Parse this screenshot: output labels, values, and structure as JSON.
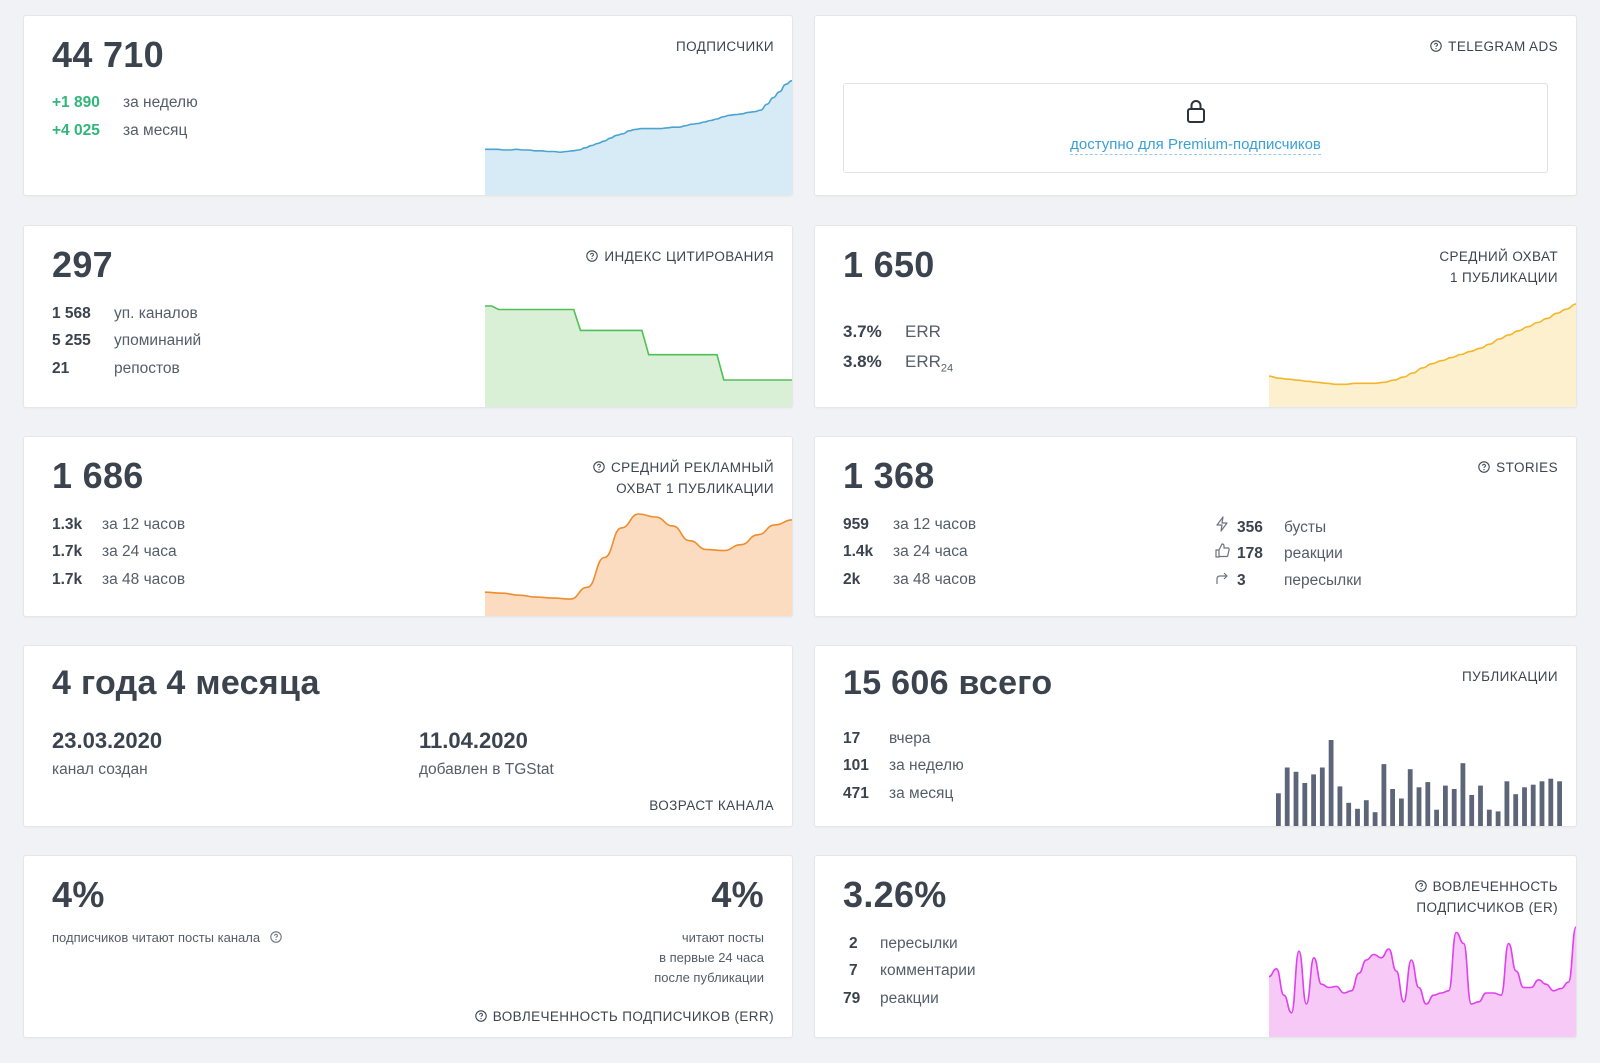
{
  "subscribers": {
    "value": "44 710",
    "label": "ПОДПИСЧИКИ",
    "week_value": "+1 890",
    "week_label": "за неделю",
    "month_value": "+4 025",
    "month_label": "за месяц",
    "chart": [
      62,
      62,
      62,
      61,
      61,
      62,
      61,
      61,
      60,
      60,
      59,
      59,
      58,
      59,
      60,
      61,
      64,
      67,
      70,
      73,
      77,
      81,
      83,
      87,
      89,
      90,
      90,
      90,
      90,
      91,
      92,
      92,
      94,
      96,
      97,
      99,
      101,
      103,
      106,
      108,
      109,
      110,
      112,
      113,
      115,
      123,
      132,
      140,
      150,
      155
    ]
  },
  "telegram_ads": {
    "label": "TELEGRAM ADS",
    "premium_text": "доступно для Premium-подписчиков"
  },
  "citation": {
    "value": "297",
    "label": "ИНДЕКС ЦИТИРОВАНИЯ",
    "rows": [
      {
        "value": "1 568",
        "label": "уп. каналов"
      },
      {
        "value": "5 255",
        "label": "упоминаний"
      },
      {
        "value": "21",
        "label": "репостов"
      }
    ],
    "chart": [
      100,
      100,
      96,
      96,
      96,
      96,
      96,
      96,
      96,
      96,
      96,
      96,
      96,
      96,
      72,
      72,
      72,
      72,
      72,
      72,
      72,
      72,
      72,
      72,
      44,
      44,
      44,
      44,
      44,
      44,
      44,
      44,
      44,
      44,
      44,
      15,
      15,
      15,
      15,
      15,
      15,
      15,
      15,
      15,
      15,
      15
    ]
  },
  "avg_reach": {
    "value": "1 650",
    "label_line1": "СРЕДНИЙ ОХВАТ",
    "label_line2": "1 ПУБЛИКАЦИИ",
    "rows": [
      {
        "value": "3.7%",
        "label": "ERR",
        "sub": ""
      },
      {
        "value": "3.8%",
        "label": "ERR",
        "sub": "24"
      }
    ],
    "chart": [
      30,
      28,
      27,
      26,
      25,
      24,
      23,
      22,
      22,
      23,
      23,
      23,
      24,
      26,
      29,
      33,
      38,
      42,
      45,
      48,
      51,
      54,
      57,
      61,
      66,
      70,
      74,
      78,
      82,
      86,
      91,
      95,
      100
    ]
  },
  "ad_reach": {
    "value": "1 686",
    "label_line1": "СРЕДНИЙ РЕКЛАМНЫЙ",
    "label_line2": "ОХВАТ 1 ПУБЛИКАЦИИ",
    "rows": [
      {
        "value": "1.3k",
        "label": "за 12 часов"
      },
      {
        "value": "1.7k",
        "label": "за 24 часа"
      },
      {
        "value": "1.7k",
        "label": "за 48 часов"
      }
    ],
    "chart": [
      20,
      19,
      17,
      15,
      14,
      13,
      25,
      55,
      85,
      99,
      96,
      87,
      72,
      63,
      62,
      68,
      78,
      88,
      93
    ]
  },
  "stories": {
    "value": "1 368",
    "label": "STORIES",
    "rows_left": [
      {
        "value": "959",
        "label": "за 12 часов"
      },
      {
        "value": "1.4k",
        "label": "за 24 часа"
      },
      {
        "value": "2k",
        "label": "за 48 часов"
      }
    ],
    "rows_right": [
      {
        "icon": "lightning-icon",
        "value": "356",
        "label": "бусты"
      },
      {
        "icon": "thumbs-up-icon",
        "value": "178",
        "label": "реакции"
      },
      {
        "icon": "forward-arrow-icon",
        "value": "3",
        "label": "пересылки"
      }
    ]
  },
  "age": {
    "value": "4 года 4 месяца",
    "created_date": "23.03.2020",
    "created_label": "канал создан",
    "added_date": "11.04.2020",
    "added_label": "добавлен в TGStat",
    "label": "ВОЗРАСТ КАНАЛА"
  },
  "publications": {
    "value": "15 606 всего",
    "label": "ПУБЛИКАЦИИ",
    "rows": [
      {
        "value": "17",
        "label": "вчера"
      },
      {
        "value": "101",
        "label": "за неделю"
      },
      {
        "value": "471",
        "label": "за месяц"
      }
    ],
    "bars": [
      38,
      68,
      63,
      50,
      60,
      68,
      100,
      46,
      27,
      20,
      30,
      16,
      72,
      43,
      32,
      66,
      45,
      51,
      19,
      47,
      43,
      73,
      36,
      47,
      19,
      17,
      52,
      37,
      45,
      48,
      52,
      55,
      52
    ]
  },
  "err": {
    "left_value": "4%",
    "left_desc": "подписчиков читают посты канала",
    "right_value": "4%",
    "right_line1": "читают посты",
    "right_line2": "в первые 24 часа",
    "right_line3": "после публикации",
    "label": "ВОВЛЕЧЕННОСТЬ ПОДПИСЧИКОВ (ERR)"
  },
  "er": {
    "value": "3.26%",
    "label_line1": "ВОВЛЕЧЕННОСТЬ",
    "label_line2": "ПОДПИСЧИКОВ (ER)",
    "rows": [
      {
        "value": "2",
        "label": "пересылки"
      },
      {
        "value": "7",
        "label": "комментарии"
      },
      {
        "value": "79",
        "label": "реакции"
      }
    ],
    "chart": [
      55,
      62,
      38,
      22,
      78,
      30,
      72,
      48,
      45,
      46,
      40,
      42,
      58,
      70,
      75,
      72,
      80,
      60,
      32,
      70,
      45,
      30,
      38,
      40,
      42,
      95,
      85,
      30,
      32,
      40,
      40,
      38,
      85,
      60,
      45,
      45,
      52,
      48,
      42,
      44,
      50,
      100
    ]
  },
  "colors": {
    "subs_line": "#4aa3d0",
    "subs_fill": "#d6ebf5",
    "citation_line": "#4fbf56",
    "citation_fill": "#d9f0d6",
    "reach_line": "#f3b62b",
    "reach_fill": "#fdf0cf",
    "ad_line": "#ee8d2f",
    "ad_fill": "#fbdcc0",
    "bars": "#5c6678",
    "er_line": "#e040ee",
    "er_fill": "#f6c9f7"
  }
}
